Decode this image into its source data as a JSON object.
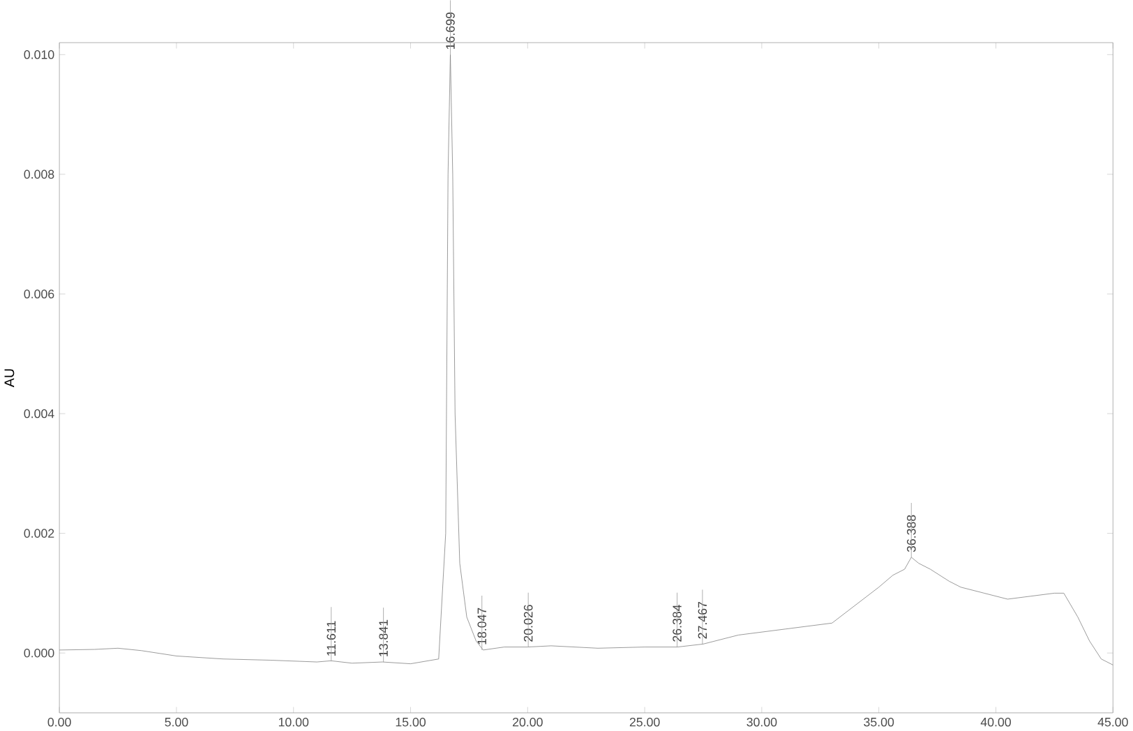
{
  "chart_data": {
    "type": "line",
    "ylabel": "AU",
    "xlim": [
      0,
      45
    ],
    "ylim": [
      -0.001,
      0.0102
    ],
    "xticks": [
      {
        "value": 0,
        "label": "0.00"
      },
      {
        "value": 5,
        "label": "5.00"
      },
      {
        "value": 10,
        "label": "10.00"
      },
      {
        "value": 15,
        "label": "15.00"
      },
      {
        "value": 20,
        "label": "20.00"
      },
      {
        "value": 25,
        "label": "25.00"
      },
      {
        "value": 30,
        "label": "30.00"
      },
      {
        "value": 35,
        "label": "35.00"
      },
      {
        "value": 40,
        "label": "40.00"
      },
      {
        "value": 45,
        "label": "45.00"
      }
    ],
    "yticks": [
      {
        "value": 0,
        "label": "0.000"
      },
      {
        "value": 0.002,
        "label": "0.002"
      },
      {
        "value": 0.004,
        "label": "0.004"
      },
      {
        "value": 0.006,
        "label": "0.006"
      },
      {
        "value": 0.008,
        "label": "0.008"
      },
      {
        "value": 0.01,
        "label": "0.010"
      }
    ],
    "grid": false,
    "marker": "none",
    "line_style": "solid",
    "series": [
      {
        "color": "#808080",
        "x": [
          0,
          1.5,
          2.5,
          3.5,
          5,
          7,
          9,
          11,
          11.6,
          12.5,
          13.8,
          15,
          16.2,
          16.5,
          16.6,
          16.699,
          16.8,
          16.9,
          17.1,
          17.4,
          17.8,
          18.1,
          19,
          20,
          21,
          23,
          25,
          26.4,
          27.5,
          29,
          30,
          31,
          32,
          33,
          34,
          35,
          35.6,
          36.1,
          36.388,
          36.7,
          37.2,
          38,
          38.5,
          39.5,
          40.5,
          41.5,
          42.5,
          42.9,
          43.5,
          44,
          44.5,
          45
        ],
        "values": [
          5e-05,
          6e-05,
          8e-05,
          4e-05,
          -5e-05,
          -0.0001,
          -0.00012,
          -0.00015,
          -0.00013,
          -0.00017,
          -0.00015,
          -0.00018,
          -0.0001,
          0.002,
          0.008,
          0.01,
          0.008,
          0.004,
          0.0015,
          0.0006,
          0.0002,
          5e-05,
          0.0001,
          0.0001,
          0.00012,
          8e-05,
          0.0001,
          0.0001,
          0.00015,
          0.0003,
          0.00035,
          0.0004,
          0.00045,
          0.0005,
          0.0008,
          0.0011,
          0.0013,
          0.0014,
          0.0016,
          0.0015,
          0.0014,
          0.0012,
          0.0011,
          0.001,
          0.0009,
          0.00095,
          0.001,
          0.001,
          0.0006,
          0.0002,
          -0.0001,
          -0.0002
        ]
      }
    ],
    "annotations": [
      {
        "text": "11.611",
        "x": 11.611,
        "y": -0.00014
      },
      {
        "text": "13.841",
        "x": 13.841,
        "y": -0.00015
      },
      {
        "text": "16.699",
        "x": 16.699,
        "y": 0.01
      },
      {
        "text": "18.047",
        "x": 18.047,
        "y": 5e-05
      },
      {
        "text": "20.026",
        "x": 20.026,
        "y": 0.0001
      },
      {
        "text": "26.384",
        "x": 26.384,
        "y": 0.0001
      },
      {
        "text": "27.467",
        "x": 27.467,
        "y": 0.00015
      },
      {
        "text": "36.388",
        "x": 36.388,
        "y": 0.0016
      }
    ]
  }
}
